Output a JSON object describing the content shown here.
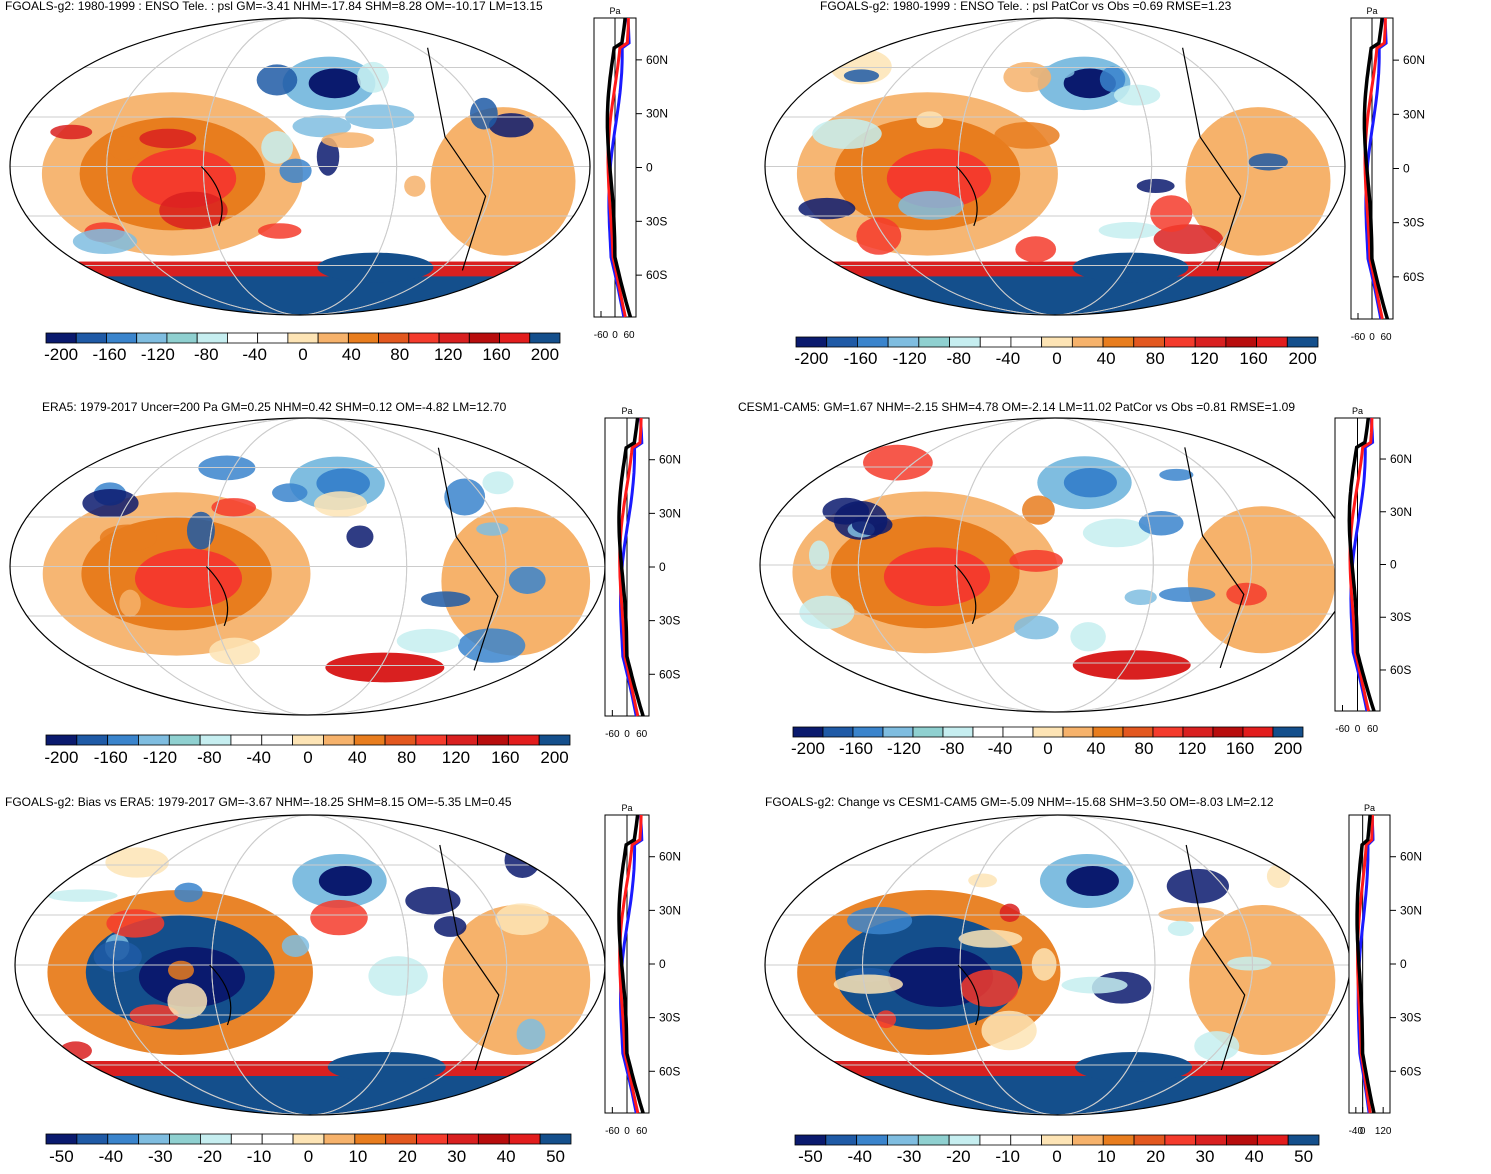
{
  "colors": {
    "scale": [
      "#0a1a6e",
      "#1f5aa6",
      "#3a84cc",
      "#7fbde0",
      "#8fd0d0",
      "#c6eef0",
      "#ffffff",
      "#ffffff",
      "#fde4b5",
      "#f6b26b",
      "#e87d1e",
      "#e3581f",
      "#f43b2c",
      "#d92020",
      "#b80d0d",
      "#e21d1d",
      "#144f8c"
    ],
    "curve_model": "#000000",
    "curve_obs": "#ff1a1a",
    "curve_alt": "#1a1aff",
    "grid": "#cccccc"
  },
  "chart_data": [
    {
      "type": "map",
      "title": "FGOALS-g2: 1980-1999 : ENSO Tele. : psl GM=-3.41 NHM=-17.84 SHM=8.28 OM=-10.17 LM=13.15",
      "colorbar_ticks": [
        "-200",
        "-160",
        "-120",
        "-80",
        "-40",
        "0",
        "40",
        "80",
        "120",
        "160",
        "200"
      ],
      "profile": {
        "unit": "Pa",
        "lat_labels": [
          "60N",
          "30N",
          "0",
          "30S",
          "60S"
        ],
        "x_ticks": [
          "-60",
          "0",
          "60"
        ],
        "xlim": [
          -90,
          90
        ]
      }
    },
    {
      "type": "map",
      "title": "FGOALS-g2: 1980-1999 : ENSO Tele. : psl PatCor vs Obs =0.69 RMSE=1.23",
      "colorbar_ticks": [
        "-200",
        "-160",
        "-120",
        "-80",
        "-40",
        "0",
        "40",
        "80",
        "120",
        "160",
        "200"
      ],
      "profile": {
        "unit": "Pa",
        "lat_labels": [
          "60N",
          "30N",
          "0",
          "30S",
          "60S"
        ],
        "x_ticks": [
          "-60",
          "0",
          "60"
        ],
        "xlim": [
          -90,
          90
        ]
      }
    },
    {
      "type": "map",
      "title": "ERA5: 1979-2017 Uncer=200 Pa GM=0.25 NHM=0.42 SHM=0.12 OM=-4.82 LM=12.70",
      "colorbar_ticks": [
        "-200",
        "-160",
        "-120",
        "-80",
        "-40",
        "0",
        "40",
        "80",
        "120",
        "160",
        "200"
      ],
      "profile": {
        "unit": "Pa",
        "lat_labels": [
          "60N",
          "30N",
          "0",
          "30S",
          "60S"
        ],
        "x_ticks": [
          "-60",
          "0",
          "60"
        ],
        "xlim": [
          -90,
          90
        ]
      }
    },
    {
      "type": "map",
      "title": "CESM1-CAM5: GM=1.67 NHM=-2.15 SHM=4.78 OM=-2.14 LM=11.02 PatCor vs Obs =0.81 RMSE=1.09",
      "colorbar_ticks": [
        "-200",
        "-160",
        "-120",
        "-80",
        "-40",
        "0",
        "40",
        "80",
        "120",
        "160",
        "200"
      ],
      "profile": {
        "unit": "Pa",
        "lat_labels": [
          "60N",
          "30N",
          "0",
          "30S",
          "60S"
        ],
        "x_ticks": [
          "-60",
          "0",
          "60"
        ],
        "xlim": [
          -90,
          90
        ]
      }
    },
    {
      "type": "map",
      "title": "FGOALS-g2: Bias vs ERA5: 1979-2017 GM=-3.67 NHM=-18.25 SHM=8.15 OM=-5.35 LM=0.45",
      "colorbar_ticks": [
        "-50",
        "-40",
        "-30",
        "-20",
        "-10",
        "0",
        "10",
        "20",
        "30",
        "40",
        "50"
      ],
      "profile": {
        "unit": "Pa",
        "lat_labels": [
          "60N",
          "30N",
          "0",
          "30S",
          "60S"
        ],
        "x_ticks": [
          "-60",
          "0",
          "60"
        ],
        "xlim": [
          -90,
          90
        ]
      }
    },
    {
      "type": "map",
      "title": "FGOALS-g2: Change vs CESM1-CAM5 GM=-5.09 NHM=-15.68 SHM=3.50 OM=-8.03 LM=2.12",
      "colorbar_ticks": [
        "-50",
        "-40",
        "-30",
        "-20",
        "-10",
        "0",
        "10",
        "20",
        "30",
        "40",
        "50"
      ],
      "profile": {
        "unit": "Pa",
        "lat_labels": [
          "60N",
          "30N",
          "0",
          "30S",
          "60S"
        ],
        "x_ticks": [
          "-40",
          "0",
          "120"
        ],
        "xlim": [
          -80,
          160
        ]
      }
    }
  ]
}
